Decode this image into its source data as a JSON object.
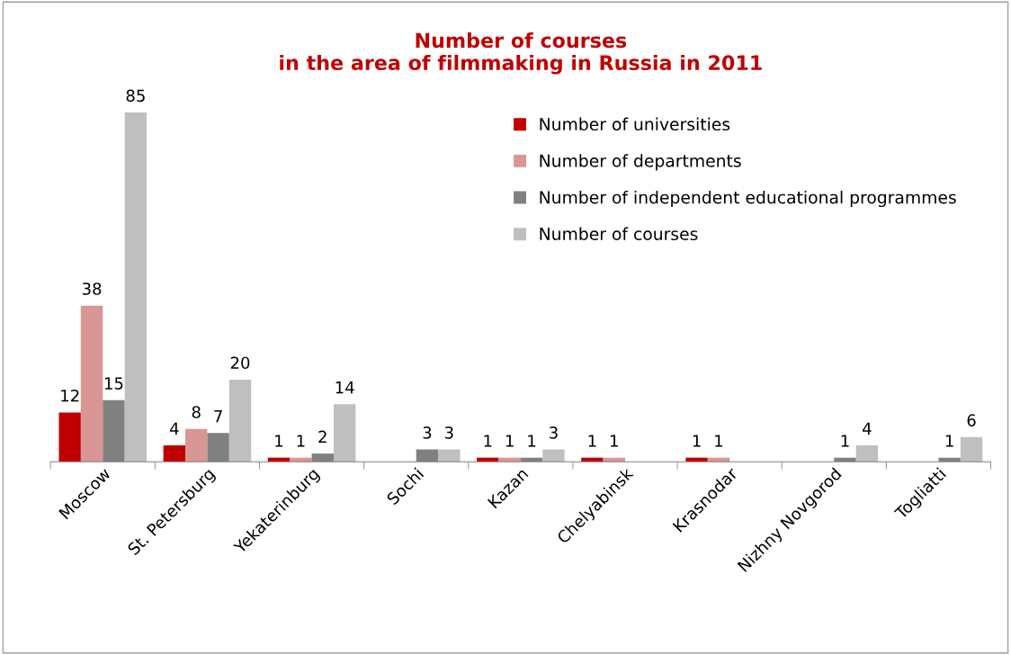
{
  "chart_data": {
    "type": "bar",
    "title": "Number of courses\nin the area of filmmaking in Russia in 2011",
    "categories": [
      "Moscow",
      "St. Petersburg",
      "Yekaterinburg",
      "Sochi",
      "Kazan",
      "Chelyabinsk",
      "Krasnodar",
      "Nizhny Novgorod",
      "Togliatti"
    ],
    "series": [
      {
        "name": "Number of universities",
        "color": "#c00000",
        "values": [
          12,
          4,
          1,
          null,
          1,
          1,
          1,
          null,
          null
        ]
      },
      {
        "name": "Number of departments",
        "color": "#d99694",
        "values": [
          38,
          8,
          1,
          null,
          1,
          1,
          1,
          null,
          null
        ]
      },
      {
        "name": "Number of independent educational programmes",
        "color": "#808080",
        "values": [
          15,
          7,
          2,
          3,
          1,
          null,
          null,
          1,
          1
        ]
      },
      {
        "name": "Number of courses",
        "color": "#bfbfbf",
        "values": [
          85,
          20,
          14,
          3,
          3,
          null,
          null,
          4,
          6
        ]
      }
    ],
    "data_labels": true,
    "legend": "top right",
    "grid": false
  }
}
